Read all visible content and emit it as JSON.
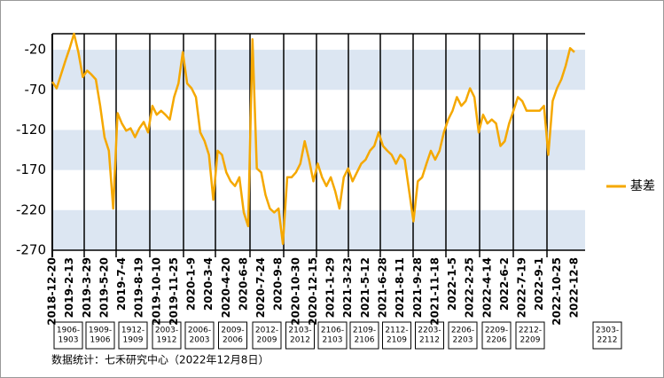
{
  "chart_data": {
    "type": "line",
    "categories": [
      "2018-12-20",
      null,
      null,
      null,
      "2019-2-13",
      null,
      null,
      null,
      "2019-3-29",
      null,
      null,
      null,
      "2019-5-20",
      null,
      null,
      null,
      "2019-7-4",
      null,
      null,
      null,
      "2019-8-19",
      null,
      null,
      null,
      "2019-10-10",
      null,
      null,
      null,
      "2019-11-25",
      null,
      null,
      null,
      "2020-1-9",
      null,
      null,
      null,
      "2020-3-4",
      null,
      null,
      null,
      "2020-4-20",
      null,
      null,
      null,
      "2020-6-8",
      null,
      null,
      null,
      "2020-7-24",
      null,
      null,
      null,
      "2020-9-8",
      null,
      null,
      null,
      "2020-10-30",
      null,
      null,
      null,
      "2020-12-15",
      null,
      null,
      null,
      "2021-1-29",
      null,
      null,
      null,
      "2021-3-23",
      null,
      null,
      null,
      "2021-5-12",
      null,
      null,
      null,
      "2021-6-28",
      null,
      null,
      null,
      "2021-8-11",
      null,
      null,
      null,
      "2021-9-28",
      null,
      null,
      null,
      "2021-11-18",
      null,
      null,
      null,
      "2022-1-5",
      null,
      null,
      null,
      "2022-2-25",
      null,
      null,
      null,
      "2022-4-14",
      null,
      null,
      null,
      "2022-6-2",
      null,
      null,
      null,
      "2022-7-19",
      null,
      null,
      null,
      "2022-9-1",
      null,
      null,
      null,
      "2022-10-25",
      null,
      null,
      null,
      "2022-12-8"
    ],
    "series": [
      {
        "name": "基差",
        "color": "#f5a800",
        "values": [
          -60,
          -68,
          -51,
          -34,
          -18,
          0,
          -23,
          -54,
          -46,
          -51,
          -57,
          -90,
          -129,
          -146,
          -218,
          -99,
          -112,
          -121,
          -118,
          -129,
          -118,
          -110,
          -123,
          -90,
          -101,
          -96,
          -101,
          -107,
          -79,
          -62,
          -23,
          -62,
          -68,
          -79,
          -123,
          -134,
          -151,
          -207,
          -146,
          -151,
          -173,
          -184,
          -190,
          -179,
          -223,
          -240,
          -7,
          -168,
          -173,
          -201,
          -218,
          -223,
          -218,
          -262,
          -179,
          -179,
          -173,
          -162,
          -134,
          -157,
          -184,
          -162,
          -179,
          -190,
          -179,
          -196,
          -218,
          -179,
          -168,
          -184,
          -173,
          -162,
          -157,
          -146,
          -140,
          -123,
          -140,
          -146,
          -151,
          -162,
          -151,
          -157,
          -196,
          -234,
          -184,
          -179,
          -162,
          -146,
          -157,
          -146,
          -123,
          -107,
          -96,
          -79,
          -90,
          -84,
          -68,
          -79,
          -123,
          -101,
          -112,
          -107,
          -112,
          -140,
          -134,
          -112,
          -96,
          -79,
          -84,
          -96,
          -96,
          -96,
          -96,
          -90,
          -151,
          -84,
          -68,
          -57,
          -40,
          -18,
          -23
        ]
      }
    ],
    "ylim": [
      -270,
      0
    ],
    "yticks": [
      -20,
      -70,
      -120,
      -170,
      -220,
      -270
    ],
    "band_color": "#dce6f2",
    "legend": "right",
    "contracts": [
      {
        "lines": [
          "1906-",
          "1903"
        ]
      },
      {
        "lines": [
          "1909-",
          "1906"
        ]
      },
      {
        "lines": [
          "1912-",
          "1909"
        ]
      },
      {
        "lines": [
          "2003-",
          "1912"
        ]
      },
      {
        "lines": [
          "2006-",
          "2003"
        ]
      },
      {
        "lines": [
          "2009-",
          "2006"
        ]
      },
      {
        "lines": [
          "2012-",
          "2009"
        ]
      },
      {
        "lines": [
          "2103-",
          "2012"
        ]
      },
      {
        "lines": [
          "2106-",
          "2103"
        ]
      },
      {
        "lines": [
          "2109-",
          "2106"
        ]
      },
      {
        "lines": [
          "2112-",
          "2109"
        ]
      },
      {
        "lines": [
          "2203-",
          "2112"
        ]
      },
      {
        "lines": [
          "2206-",
          "2203"
        ]
      },
      {
        "lines": [
          "2209-",
          "2206"
        ]
      },
      {
        "lines": [
          "2212-",
          "2209"
        ]
      },
      {
        "lines": [
          "2303-",
          "2212"
        ]
      }
    ],
    "note": "数据统计：七禾研究中心（2022年12月8日）"
  }
}
